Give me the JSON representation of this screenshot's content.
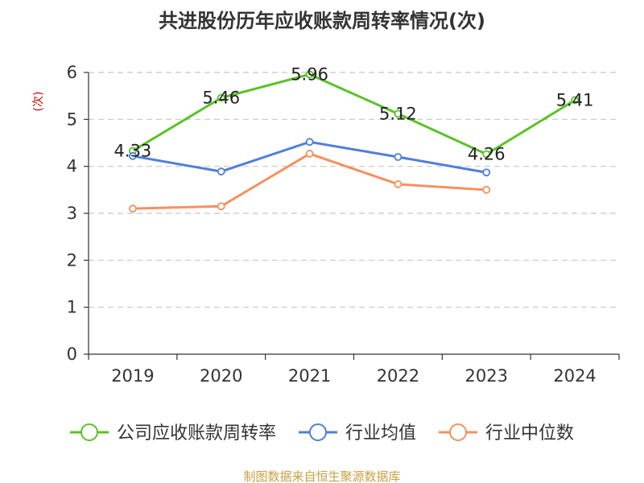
{
  "chart_data": {
    "type": "line",
    "title": "共进股份历年应收账款周转率情况(次)",
    "ylabel": "(次)",
    "xlabel": "",
    "categories": [
      "2019",
      "2020",
      "2021",
      "2022",
      "2023",
      "2024"
    ],
    "ylim": [
      0,
      6
    ],
    "yticks": [
      0,
      1,
      2,
      3,
      4,
      5,
      6
    ],
    "grid": true,
    "legend_position": "bottom",
    "series": [
      {
        "name": "公司应收账款周转率",
        "color": "#5bc227",
        "values": [
          4.33,
          5.46,
          5.96,
          5.12,
          4.26,
          5.41
        ],
        "show_labels": true,
        "labels": [
          "4.33",
          "5.46",
          "5.96",
          "5.12",
          "4.26",
          "5.41"
        ]
      },
      {
        "name": "行业均值",
        "color": "#4f7fdb",
        "values": [
          4.22,
          3.89,
          4.52,
          4.2,
          3.87,
          null
        ],
        "show_labels": false
      },
      {
        "name": "行业中位数",
        "color": "#f59160",
        "values": [
          3.1,
          3.15,
          4.27,
          3.62,
          3.5,
          null
        ],
        "show_labels": false
      }
    ],
    "source": "制图数据来自恒生聚源数据库"
  }
}
